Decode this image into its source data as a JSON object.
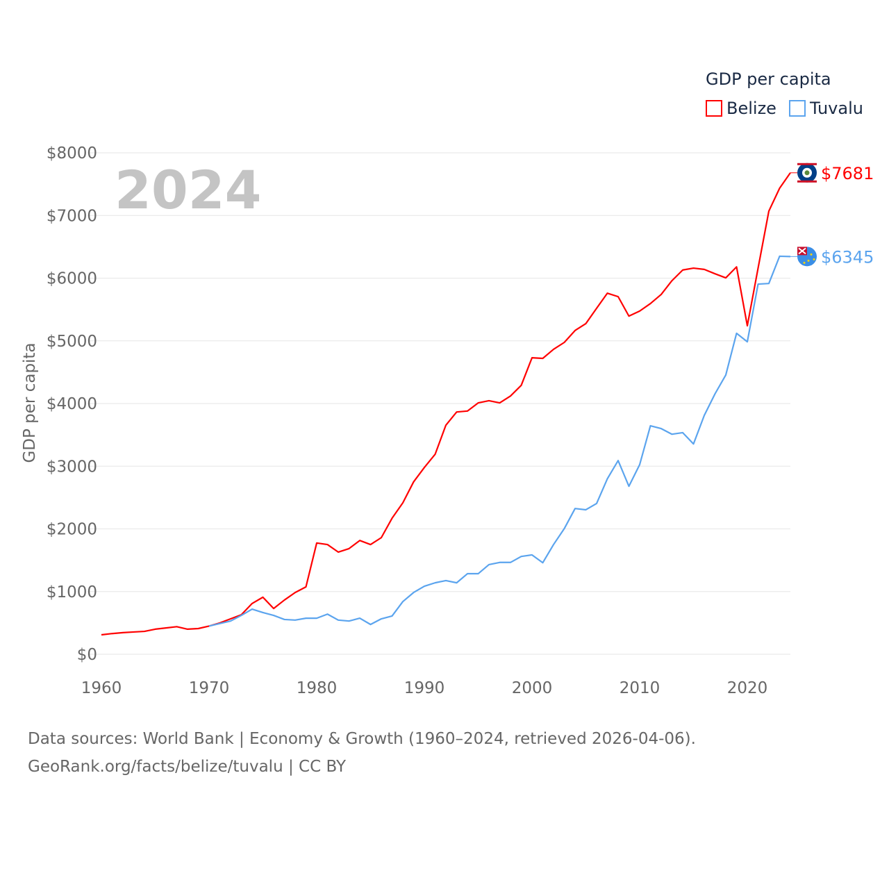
{
  "chart_data": {
    "type": "line",
    "title": "GDP per capita",
    "ylabel": "GDP per capita",
    "xlabel": "",
    "year_label": "2024",
    "xlim": [
      1960,
      2024
    ],
    "ylim": [
      0,
      8000
    ],
    "x_ticks": [
      "1960",
      "1970",
      "1980",
      "1990",
      "2000",
      "2010",
      "2020"
    ],
    "y_ticks": [
      "$0",
      "$1000",
      "$2000",
      "$3000",
      "$4000",
      "$5000",
      "$6000",
      "$7000",
      "$8000"
    ],
    "grid": true,
    "legend_position": "top-right",
    "series": [
      {
        "name": "Belize",
        "color": "#ff0000",
        "start_year": 1960,
        "end_label": "$7681",
        "values": [
          310,
          330,
          345,
          355,
          365,
          400,
          420,
          440,
          400,
          410,
          450,
          500,
          565,
          630,
          810,
          910,
          730,
          865,
          985,
          1075,
          1775,
          1750,
          1630,
          1685,
          1815,
          1750,
          1860,
          2170,
          2415,
          2750,
          2980,
          3190,
          3655,
          3865,
          3880,
          4010,
          4045,
          4010,
          4120,
          4290,
          4730,
          4720,
          4865,
          4975,
          5165,
          5275,
          5520,
          5760,
          5705,
          5395,
          5475,
          5595,
          5740,
          5960,
          6130,
          6160,
          6140,
          6070,
          6005,
          6180,
          5240,
          6160,
          7070,
          7435,
          7681
        ]
      },
      {
        "name": "Tuvalu",
        "color": "#5ba4ee",
        "start_year": 1970,
        "end_label": "$6345",
        "values": [
          450,
          490,
          530,
          620,
          720,
          665,
          620,
          555,
          545,
          575,
          575,
          640,
          545,
          530,
          575,
          475,
          565,
          610,
          840,
          985,
          1085,
          1140,
          1175,
          1140,
          1285,
          1285,
          1430,
          1465,
          1465,
          1560,
          1585,
          1460,
          1750,
          2005,
          2325,
          2305,
          2405,
          2800,
          3090,
          2680,
          3025,
          3645,
          3600,
          3510,
          3535,
          3355,
          3810,
          4155,
          4455,
          5120,
          4985,
          5905,
          5915,
          6350,
          6345
        ]
      }
    ]
  },
  "footer": {
    "line1": "Data sources: World Bank | Economy & Growth (1960–2024, retrieved 2026-04-06).",
    "line2": "GeoRank.org/facts/belize/tuvalu | CC BY"
  }
}
